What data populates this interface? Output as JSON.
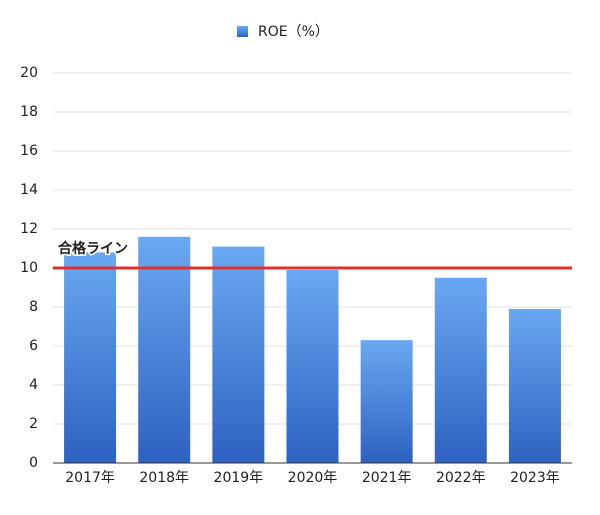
{
  "chart_data": {
    "type": "bar",
    "series": [
      {
        "name": "ROE（%）",
        "color": "#2d62c0",
        "highlight_color": "#6aa8f2",
        "values": [
          10.8,
          11.6,
          11.1,
          9.9,
          6.3,
          9.5,
          7.9
        ]
      }
    ],
    "categories": [
      "2017年",
      "2018年",
      "2019年",
      "2020年",
      "2021年",
      "2022年",
      "2023年"
    ],
    "ylim": [
      0,
      20
    ],
    "yticks": [
      0,
      2,
      4,
      6,
      8,
      10,
      12,
      14,
      16,
      18,
      20
    ],
    "grid": true,
    "legend": "top",
    "reference_line": {
      "value": 10,
      "label": "合格ライン",
      "color": "#e0302a"
    }
  }
}
